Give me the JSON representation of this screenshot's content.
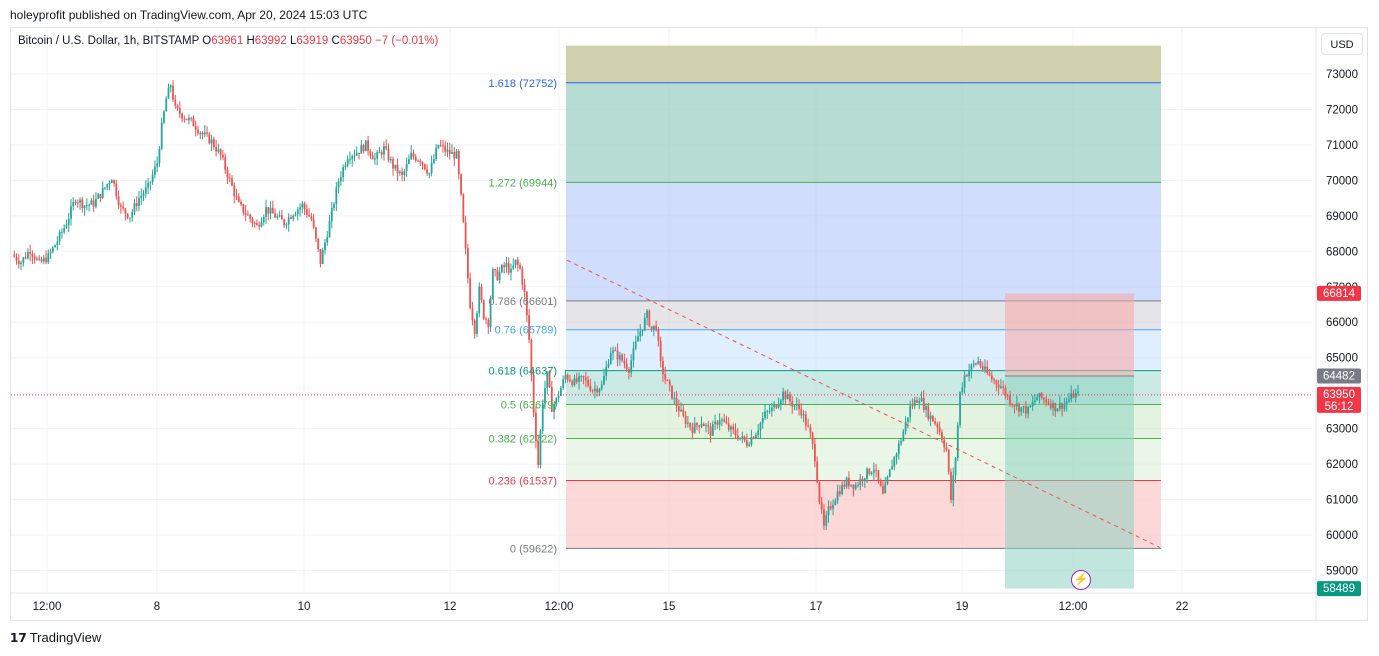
{
  "header": {
    "publisher": "holeyprofit published on TradingView.com, Apr 20, 2024 15:03 UTC"
  },
  "legend": {
    "symbol": "Bitcoin / U.S. Dollar, 1h, BITSTAMP",
    "open_label": "O",
    "open": "63961",
    "high_label": "H",
    "high": "63992",
    "low_label": "L",
    "low": "63919",
    "close_label": "C",
    "close": "63950",
    "change": "−7 (−0.01%)"
  },
  "currency_button": "USD",
  "footer": {
    "brand": "TradingView",
    "logo": "17"
  },
  "colors": {
    "up": "#26a69a",
    "down": "#ef5350",
    "grid": "#f0f3fa",
    "fib_1618": "#2962ff",
    "fib_1272": "#4caf50",
    "fib_0786": "#787b86",
    "fib_076": "#42a5f5",
    "fib_0618": "#089981",
    "fib_05": "#4caf50",
    "fib_0382": "#4caf50",
    "fib_0236": "#f23645",
    "fib_0": "#787b86"
  },
  "chart_data": {
    "type": "candlestick",
    "symbol": "Bitcoin / U.S. Dollar",
    "interval": "1h",
    "exchange": "BITSTAMP",
    "y_ticks": [
      59000,
      60000,
      61000,
      62000,
      63000,
      64000,
      65000,
      66000,
      67000,
      68000,
      69000,
      70000,
      71000,
      72000,
      73000
    ],
    "ylim": [
      58200,
      73800
    ],
    "x_ticks": [
      "12:00",
      "8",
      "10",
      "12",
      "12:00",
      "15",
      "17",
      "19",
      "12:00",
      "22"
    ],
    "grid": true,
    "price_path": [
      [
        0,
        67900
      ],
      [
        4,
        67700
      ],
      [
        8,
        68050
      ],
      [
        12,
        67650
      ],
      [
        16,
        67850
      ],
      [
        20,
        68300
      ],
      [
        24,
        68800
      ],
      [
        28,
        69500
      ],
      [
        32,
        69300
      ],
      [
        36,
        69350
      ],
      [
        40,
        69700
      ],
      [
        44,
        70100
      ],
      [
        48,
        69200
      ],
      [
        52,
        69000
      ],
      [
        56,
        69500
      ],
      [
        60,
        69800
      ],
      [
        64,
        70500
      ],
      [
        66,
        71500
      ],
      [
        68,
        72300
      ],
      [
        70,
        72700
      ],
      [
        72,
        72000
      ],
      [
        76,
        71800
      ],
      [
        80,
        71600
      ],
      [
        84,
        71300
      ],
      [
        88,
        71100
      ],
      [
        92,
        70700
      ],
      [
        96,
        70000
      ],
      [
        100,
        69300
      ],
      [
        104,
        69000
      ],
      [
        108,
        68700
      ],
      [
        112,
        69200
      ],
      [
        116,
        69000
      ],
      [
        120,
        68800
      ],
      [
        124,
        69100
      ],
      [
        128,
        69300
      ],
      [
        132,
        68900
      ],
      [
        136,
        67700
      ],
      [
        140,
        68800
      ],
      [
        144,
        70000
      ],
      [
        148,
        70700
      ],
      [
        152,
        70800
      ],
      [
        156,
        71000
      ],
      [
        160,
        70600
      ],
      [
        164,
        70900
      ],
      [
        168,
        70400
      ],
      [
        172,
        70100
      ],
      [
        176,
        70700
      ],
      [
        180,
        70600
      ],
      [
        184,
        70200
      ],
      [
        188,
        71000
      ],
      [
        192,
        70800
      ],
      [
        196,
        70700
      ],
      [
        198,
        69500
      ],
      [
        200,
        68000
      ],
      [
        202,
        66500
      ],
      [
        204,
        65800
      ],
      [
        206,
        66900
      ],
      [
        208,
        66200
      ],
      [
        210,
        66000
      ],
      [
        212,
        67400
      ],
      [
        214,
        67300
      ],
      [
        216,
        67500
      ],
      [
        218,
        67600
      ],
      [
        220,
        67400
      ],
      [
        222,
        67700
      ],
      [
        224,
        67500
      ],
      [
        226,
        66800
      ],
      [
        228,
        65500
      ],
      [
        230,
        63500
      ],
      [
        232,
        62000
      ],
      [
        234,
        63800
      ],
      [
        236,
        64500
      ],
      [
        238,
        63600
      ],
      [
        240,
        63800
      ],
      [
        244,
        64500
      ],
      [
        248,
        64300
      ],
      [
        252,
        64400
      ],
      [
        256,
        64100
      ],
      [
        260,
        64200
      ],
      [
        264,
        65200
      ],
      [
        268,
        65000
      ],
      [
        272,
        64700
      ],
      [
        276,
        65600
      ],
      [
        280,
        66200
      ],
      [
        282,
        65800
      ],
      [
        284,
        65900
      ],
      [
        286,
        64800
      ],
      [
        288,
        64400
      ],
      [
        292,
        63800
      ],
      [
        296,
        63300
      ],
      [
        300,
        63000
      ],
      [
        304,
        63200
      ],
      [
        308,
        62900
      ],
      [
        312,
        63300
      ],
      [
        316,
        63000
      ],
      [
        320,
        62800
      ],
      [
        324,
        62600
      ],
      [
        328,
        62900
      ],
      [
        332,
        63400
      ],
      [
        336,
        63600
      ],
      [
        340,
        64000
      ],
      [
        344,
        63700
      ],
      [
        348,
        63500
      ],
      [
        352,
        62800
      ],
      [
        354,
        62200
      ],
      [
        356,
        61000
      ],
      [
        358,
        60200
      ],
      [
        360,
        60700
      ],
      [
        364,
        61200
      ],
      [
        368,
        61500
      ],
      [
        372,
        61400
      ],
      [
        376,
        61700
      ],
      [
        380,
        61900
      ],
      [
        384,
        61100
      ],
      [
        388,
        62000
      ],
      [
        392,
        62700
      ],
      [
        396,
        63600
      ],
      [
        400,
        63900
      ],
      [
        404,
        63400
      ],
      [
        408,
        63100
      ],
      [
        412,
        62400
      ],
      [
        414,
        61000
      ],
      [
        416,
        62200
      ],
      [
        418,
        64000
      ],
      [
        420,
        64500
      ],
      [
        424,
        64800
      ],
      [
        426,
        64900
      ],
      [
        428,
        64700
      ],
      [
        432,
        64400
      ],
      [
        436,
        64200
      ],
      [
        440,
        63800
      ],
      [
        444,
        63600
      ],
      [
        448,
        63500
      ],
      [
        452,
        63900
      ],
      [
        456,
        63800
      ],
      [
        460,
        63600
      ],
      [
        464,
        63700
      ],
      [
        468,
        63950
      ]
    ],
    "fib_levels": [
      {
        "ratio": "1.618",
        "value": 72752,
        "label": "1.618 (72752)"
      },
      {
        "ratio": "1.272",
        "value": 69944,
        "label": "1.272 (69944)"
      },
      {
        "ratio": "0.786",
        "value": 66601,
        "label": "0.786 (66601)"
      },
      {
        "ratio": "0.76",
        "value": 65789,
        "label": "0.76 (65789)"
      },
      {
        "ratio": "0.618",
        "value": 64637,
        "label": "0.618 (64637)"
      },
      {
        "ratio": "0.5",
        "value": 63679,
        "label": "0.5 (63679)"
      },
      {
        "ratio": "0.382",
        "value": 62722,
        "label": "0.382 (62722)"
      },
      {
        "ratio": "0.236",
        "value": 61537,
        "label": "0.236 (61537)"
      },
      {
        "ratio": "0",
        "value": 59622,
        "label": "0 (59622)"
      }
    ],
    "position_box": {
      "stop": 66814,
      "entry": 64482,
      "target": 58489
    },
    "price_labels": [
      {
        "value": 66814,
        "text": "66814",
        "color": "#f23645"
      },
      {
        "value": 64482,
        "text": "64482",
        "color": "#787b86"
      },
      {
        "value": 63950,
        "text": "63950",
        "sub": "56:12",
        "color": "#f23645"
      },
      {
        "value": 58489,
        "text": "58489",
        "color": "#089981"
      }
    ],
    "current_price": 63950
  }
}
